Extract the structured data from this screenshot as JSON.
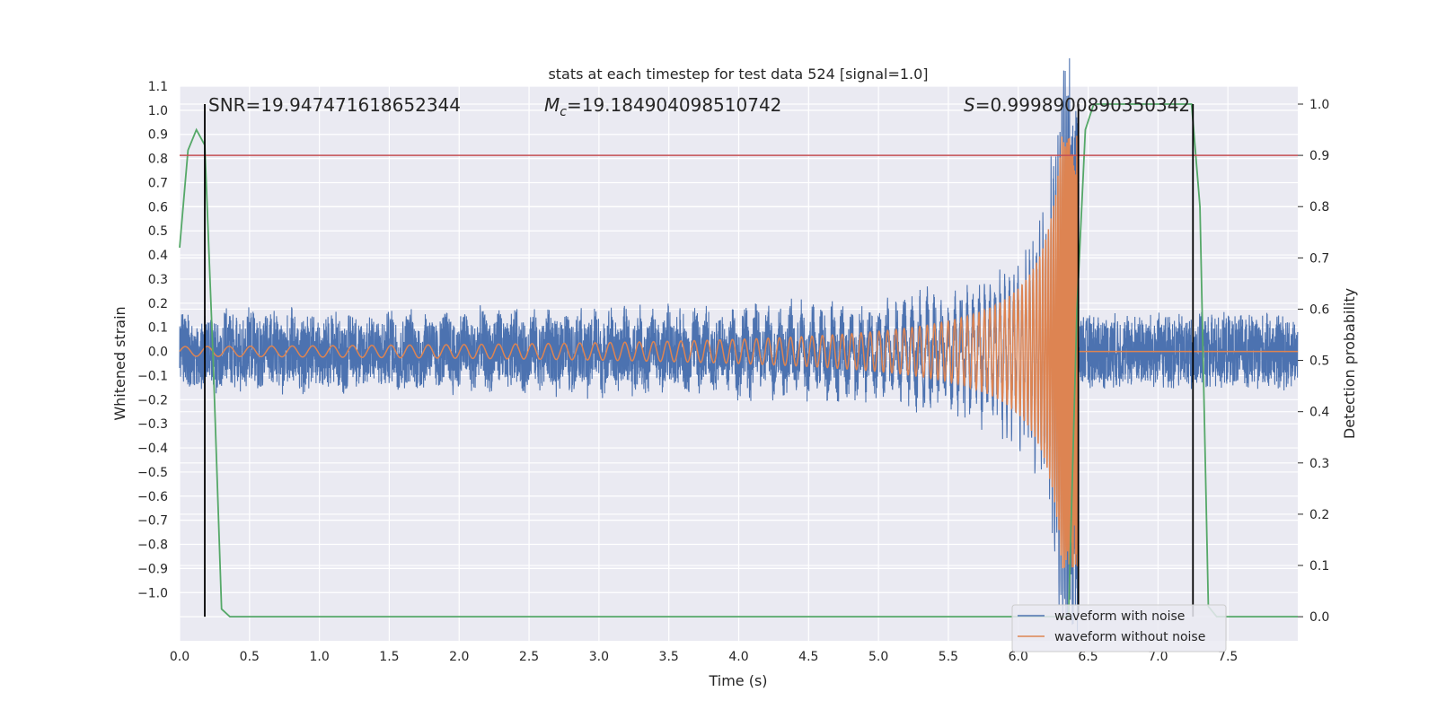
{
  "chart_data": {
    "type": "line",
    "title": "stats at each timestep for test data 524 [signal=1.0]",
    "xlabel": "Time (s)",
    "ylabel": "Whitened strain",
    "y2label": "Detection probability",
    "xlim": [
      0.0,
      8.0
    ],
    "ylim": [
      -1.2,
      1.1
    ],
    "y2lim": [
      -0.047,
      1.035
    ],
    "x_ticks": [
      "0.0",
      "0.5",
      "1.0",
      "1.5",
      "2.0",
      "2.5",
      "3.0",
      "3.5",
      "4.0",
      "4.5",
      "5.0",
      "5.5",
      "6.0",
      "6.5",
      "7.0",
      "7.5"
    ],
    "y_ticks": [
      "1.1",
      "1.0",
      "0.9",
      "0.8",
      "0.7",
      "0.6",
      "0.5",
      "0.4",
      "0.3",
      "0.2",
      "0.1",
      "0.0",
      "−0.1",
      "−0.2",
      "−0.3",
      "−0.4",
      "−0.5",
      "−0.6",
      "−0.7",
      "−0.8",
      "−0.9",
      "−1.0"
    ],
    "y2_ticks": [
      "1.0",
      "0.9",
      "0.8",
      "0.7",
      "0.6",
      "0.5",
      "0.4",
      "0.3",
      "0.2",
      "0.1",
      "0.0"
    ],
    "grid": true,
    "legend_placement": "lower-right",
    "annotations": {
      "snr": "SNR=19.947471618652344",
      "mc_symbol": "M",
      "mc_sub": "c",
      "mc_value": "=19.184904098510742",
      "s_symbol": "S",
      "s_value": "=0.9998900890350342"
    },
    "series": [
      {
        "name": "waveform with noise",
        "color": "#4c72b0",
        "description_values": "noise band approx ±0.15 plus chirp rising to ~1.0 near t=6.43, then noise only"
      },
      {
        "name": "waveform without noise",
        "color": "#dd8452",
        "description_values": "chirp amplitude 0.02 at t=0 growing to ~0.9 at merger t=6.43, then 0"
      },
      {
        "name": "",
        "color": "#55a868",
        "axis": "right",
        "x": [
          0.0,
          0.06,
          0.12,
          0.18,
          0.24,
          0.3,
          0.36,
          6.36,
          6.42,
          6.48,
          6.54,
          7.24,
          7.3,
          7.36,
          7.42,
          8.0
        ],
        "values": [
          0.72,
          0.91,
          0.95,
          0.92,
          0.5,
          0.015,
          0.0,
          0.0,
          0.6,
          0.95,
          1.0,
          1.0,
          0.8,
          0.02,
          0.0,
          0.0
        ]
      }
    ],
    "threshold": {
      "value": 0.9,
      "axis": "right",
      "color": "#c44e52"
    },
    "vlines": [
      0.18,
      6.43,
      7.25
    ],
    "vline_color": "#000000"
  }
}
